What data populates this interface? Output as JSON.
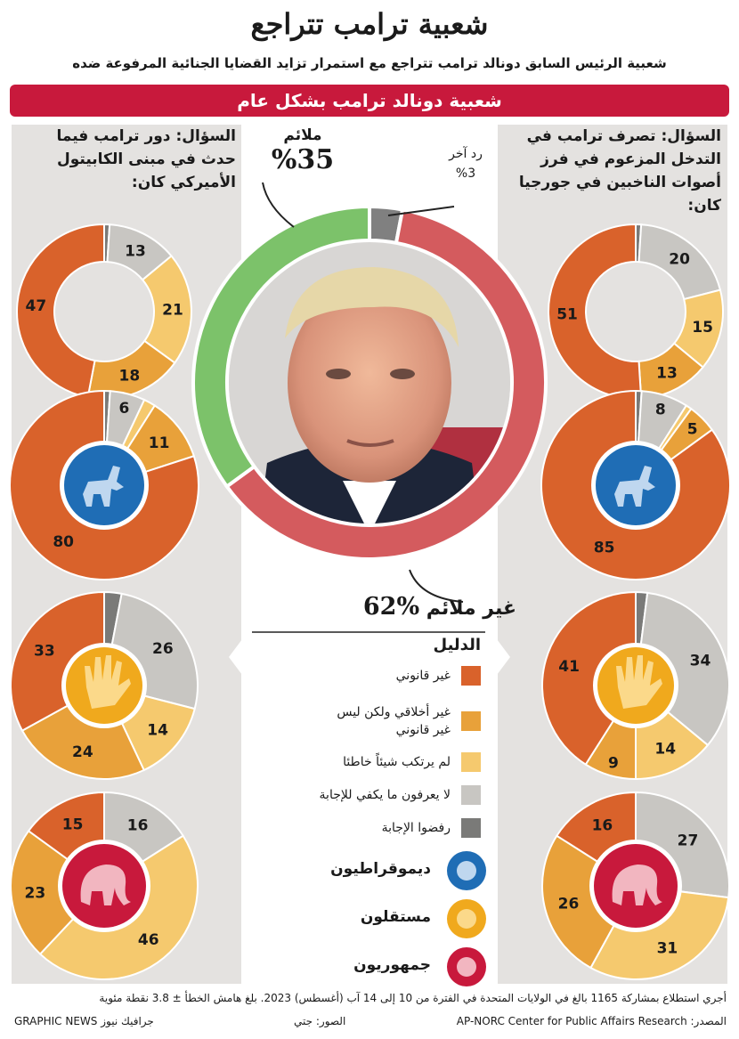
{
  "header": {
    "title": "شعبية ترامب تتراجع",
    "subtitle": "شعبية الرئيس السابق دونالد ترامب تتراجع مع استمرار تزايد القضايا الجنائية المرفوعة ضده",
    "banner": "شعبية دونالد ترامب بشكل عام"
  },
  "colors": {
    "illegal": "#d9622b",
    "unethical": "#e8a13a",
    "nothing_wrong": "#f5c96e",
    "dont_know": "#c8c6c2",
    "refused": "#7a7a78",
    "favorable": "#7cc26a",
    "unfavorable": "#d45b5e",
    "other": "#808080",
    "banner": "#c8193c",
    "democrat_icon": "#1f6db5",
    "independent_icon": "#f0a91d",
    "republican_icon": "#c8193c"
  },
  "questions": {
    "left": "السؤال: دور ترامب فيما حدث في مبنى الكابيتول الأميركي كان:",
    "right": "السؤال: تصرف ترامب في التدخل المزعوم في فرز أصوات الناخبين في جورجيا كان:"
  },
  "main_labels": {
    "favorable_label": "ملائم",
    "favorable_value": "%35",
    "other_label": "رد آخر",
    "other_value": "%3",
    "unfavorable_label": "غير ملائم",
    "unfavorable_value": "%62"
  },
  "legend": {
    "title": "الدليل",
    "items": [
      {
        "label": "غير قانوني",
        "color": "#d9622b"
      },
      {
        "label": "غير أخلاقي ولكن ليس غير قانوني",
        "color": "#e8a13a"
      },
      {
        "label": "لم يرتكب شيئاً خاطئا",
        "color": "#f5c96e"
      },
      {
        "label": "لا يعرفون ما يكفي للإجابة",
        "color": "#c8c6c2"
      },
      {
        "label": "رفضوا الإجابة",
        "color": "#7a7a78"
      }
    ],
    "parties": [
      {
        "label": "ديموقراطيون",
        "icon": "donkey-icon"
      },
      {
        "label": "مستقلون",
        "icon": "hand-icon"
      },
      {
        "label": "جمهوريون",
        "icon": "elephant-icon"
      }
    ]
  },
  "chart_data": [
    {
      "type": "pie",
      "title": "شعبية دونالد ترامب بشكل عام",
      "categories": [
        "غير ملائم",
        "ملائم",
        "رد آخر"
      ],
      "values": [
        62,
        35,
        3
      ]
    },
    {
      "type": "pie",
      "title": "السؤال: دور ترامب فيما حدث في مبنى الكابيتول الأميركي كان:",
      "categories": [
        "غير قانوني",
        "غير أخلاقي ولكن ليس غير قانوني",
        "لم يرتكب شيئاً خاطئا",
        "لا يعرفون ما يكفي للإجابة",
        "رفضوا الإجابة"
      ],
      "series": [
        {
          "values": [
            47,
            18,
            21,
            13,
            1
          ]
        },
        {
          "name": "ديموقراطيون",
          "values": [
            80,
            11,
            2,
            6,
            1
          ]
        },
        {
          "name": "مستقلون",
          "values": [
            33,
            24,
            14,
            26,
            3
          ]
        },
        {
          "name": "جمهوريون",
          "values": [
            15,
            23,
            46,
            16,
            0
          ]
        }
      ]
    },
    {
      "type": "pie",
      "title": "السؤال: تصرف ترامب في التدخل المزعوم في فرز أصوات الناخبين في جورجيا كان:",
      "categories": [
        "غير قانوني",
        "غير أخلاقي ولكن ليس غير قانوني",
        "لم يرتكب شيئاً خاطئا",
        "لا يعرفون ما يكفي للإجابة",
        "رفضوا الإجابة"
      ],
      "series": [
        {
          "values": [
            51,
            13,
            15,
            20,
            1
          ]
        },
        {
          "name": "ديموقراطيون",
          "values": [
            85,
            5,
            1,
            8,
            1
          ]
        },
        {
          "name": "مستقلون",
          "values": [
            41,
            9,
            14,
            34,
            2
          ]
        },
        {
          "name": "جمهوريون",
          "values": [
            16,
            26,
            31,
            27,
            0
          ]
        }
      ]
    }
  ],
  "footer": {
    "note": "أجري استطلاع بمشاركة 1165 بالغ في الولايات المتحدة في الفترة من 10 إلى 14 آب (أغسطس) 2023. بلغ هامش الخطأ ± 3.8 نقطة مئوية",
    "source": "المصدر: AP-NORC Center for Public Affairs Research",
    "photo": "الصور: جتي",
    "brand": "GRAPHIC NEWS جرافيك نيوز"
  }
}
